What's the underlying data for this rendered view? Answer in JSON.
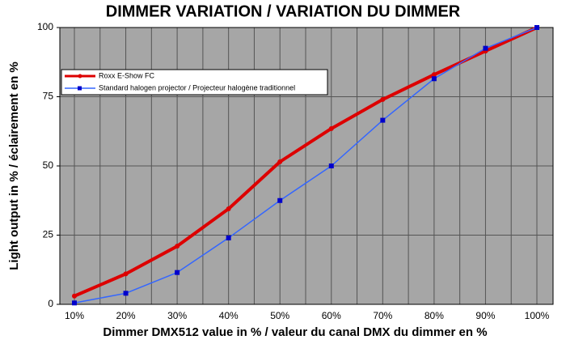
{
  "chart_data": {
    "type": "line",
    "title": "DIMMER VARIATION / VARIATION DU DIMMER",
    "x_label": "Dimmer DMX512 value in % / valeur du canal DMX du dimmer en %",
    "y_label": "Light output in % / éclairement en %",
    "categories": [
      "10%",
      "20%",
      "30%",
      "40%",
      "50%",
      "60%",
      "70%",
      "80%",
      "90%",
      "100%"
    ],
    "series": [
      {
        "name": "Roxx E-Show FC",
        "color": "#dd0000",
        "values": [
          3,
          11,
          21,
          34.5,
          51.5,
          63.5,
          74,
          83,
          91.5,
          100
        ]
      },
      {
        "name": "Standard halogen projector / Projecteur halogène traditionnel",
        "color": "#3366ff",
        "values": [
          0.5,
          4,
          11.5,
          24,
          37.5,
          50,
          66.5,
          81.5,
          92.5,
          100
        ]
      }
    ],
    "ylim": [
      0,
      100
    ],
    "yticks": [
      0,
      25,
      50,
      75,
      100
    ],
    "grid": true,
    "legend": "upper left"
  }
}
